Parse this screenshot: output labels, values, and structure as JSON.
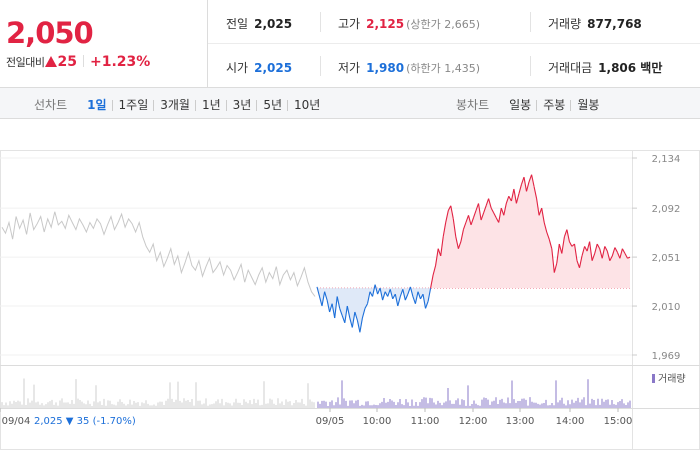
{
  "quote": {
    "price": "2,050",
    "change_label": "전일대비",
    "change_amount": "25",
    "change_pct": "+1.23%"
  },
  "stats": {
    "prev_close_label": "전일",
    "prev_close": "2,025",
    "high_label": "고가",
    "high": "2,125",
    "upper_limit": "(상한가 2,665)",
    "volume_label": "거래량",
    "volume": "877,768",
    "open_label": "시가",
    "open": "2,025",
    "low_label": "저가",
    "low": "1,980",
    "lower_limit": "(하한가 1,435)",
    "amount_label": "거래대금",
    "amount": "1,806 백만"
  },
  "period_tabs": {
    "title": "선차트",
    "items": [
      "1일",
      "1주일",
      "3개월",
      "1년",
      "3년",
      "5년",
      "10년"
    ],
    "active": 0
  },
  "candle_tabs": {
    "title": "봉차트",
    "items": [
      "일봉",
      "주봉",
      "월봉"
    ]
  },
  "colors": {
    "up": "#e12343",
    "down": "#1c6fd9",
    "prev_day": "#c8c8c8"
  },
  "chart_data": {
    "type": "line",
    "y_ticks": [
      2134,
      2092,
      2051,
      2010,
      1969
    ],
    "ylim": [
      1969,
      2134
    ],
    "reference_price": 2025,
    "x_ticks": [
      "09/04",
      "09/05",
      "10:00",
      "11:00",
      "12:00",
      "13:00",
      "14:00",
      "15:00"
    ],
    "prev_day_summary": {
      "date": "09/04",
      "close": "2,025",
      "change": "▼ 35",
      "pct": "(-1.70%)"
    },
    "volume_legend": "거래량",
    "prev_day_series": [
      2076,
      2071,
      2080,
      2066,
      2085,
      2075,
      2082,
      2070,
      2088,
      2074,
      2079,
      2085,
      2072,
      2083,
      2076,
      2089,
      2078,
      2081,
      2075,
      2086,
      2080,
      2074,
      2083,
      2078,
      2072,
      2080,
      2075,
      2083,
      2079,
      2070,
      2078,
      2085,
      2074,
      2080,
      2087,
      2076,
      2083,
      2079,
      2072,
      2080,
      2068,
      2060,
      2055,
      2062,
      2048,
      2055,
      2043,
      2050,
      2058,
      2045,
      2052,
      2038,
      2046,
      2055,
      2044,
      2040,
      2048,
      2035,
      2043,
      2050,
      2038,
      2042,
      2047,
      2036,
      2044,
      2040,
      2032,
      2038,
      2045,
      2030,
      2040,
      2034,
      2028,
      2036,
      2042,
      2030,
      2038,
      2033,
      2043,
      2028,
      2036,
      2040,
      2032,
      2038,
      2027,
      2034,
      2042,
      2030,
      2022,
      2018
    ],
    "today_series": [
      2026,
      2018,
      2010,
      2022,
      2015,
      2005,
      2012,
      2000,
      2018,
      2008,
      2002,
      1996,
      2010,
      2000,
      1992,
      2005,
      1998,
      1988,
      2000,
      2008,
      2012,
      2022,
      2018,
      2028,
      2020,
      2025,
      2015,
      2022,
      2018,
      2024,
      2016,
      2020,
      2010,
      2018,
      2024,
      2015,
      2020,
      2026,
      2018,
      2012,
      2022,
      2016,
      2020,
      2008,
      2014,
      2025,
      2036,
      2044,
      2058,
      2052,
      2068,
      2080,
      2090,
      2094,
      2083,
      2068,
      2058,
      2064,
      2074,
      2080,
      2086,
      2078,
      2084,
      2090,
      2096,
      2082,
      2088,
      2094,
      2100,
      2092,
      2088,
      2084,
      2080,
      2092,
      2086,
      2096,
      2102,
      2098,
      2108,
      2096,
      2104,
      2112,
      2118,
      2106,
      2114,
      2120,
      2110,
      2100,
      2086,
      2092,
      2080,
      2072,
      2066,
      2058,
      2038,
      2046,
      2062,
      2054,
      2068,
      2074,
      2064,
      2060,
      2062,
      2048,
      2042,
      2052,
      2060,
      2056,
      2064,
      2048,
      2054,
      2062,
      2058,
      2050,
      2060,
      2056,
      2048,
      2052,
      2059,
      2055,
      2050,
      2058,
      2054,
      2050,
      2051
    ]
  }
}
